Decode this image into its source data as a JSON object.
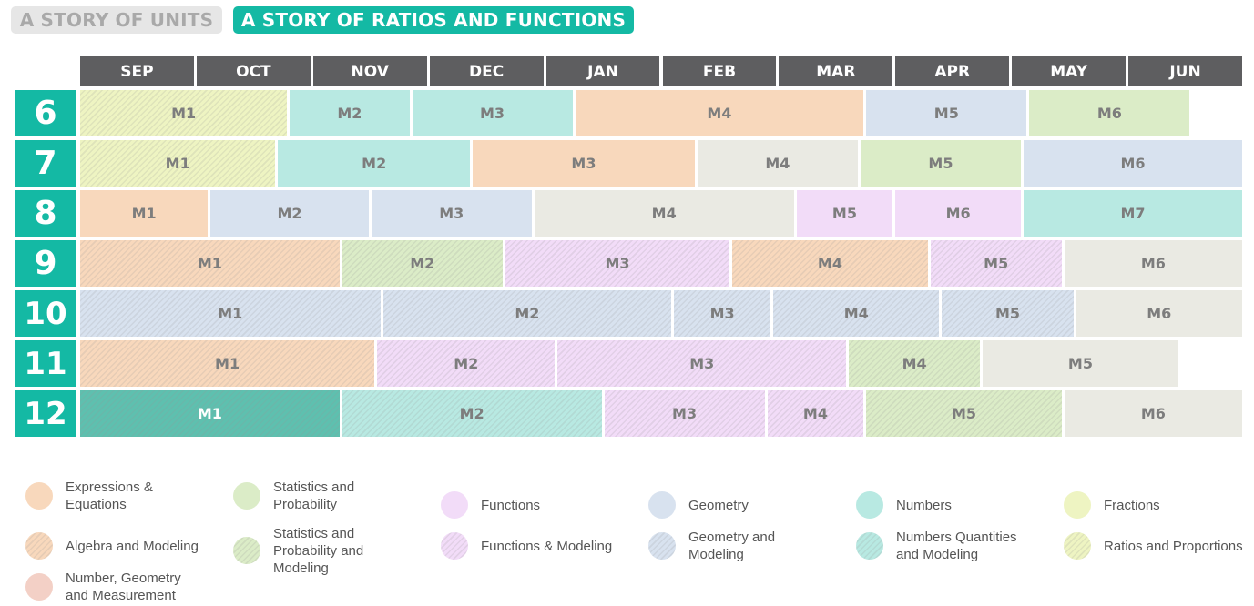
{
  "tabs": {
    "units": "A STORY OF UNITS",
    "ratios": "A STORY OF RATIOS AND FUNCTIONS"
  },
  "months": [
    "SEP",
    "OCT",
    "NOV",
    "DEC",
    "JAN",
    "FEB",
    "MAR",
    "APR",
    "MAY",
    "JUN"
  ],
  "colors": {
    "expressions": "#f8d8bc",
    "algebra": "#f8d8bc",
    "ngm": "#f3d0c6",
    "stats": "#dbecc7",
    "stats_modeling": "#dbecc7",
    "functions": "#f2dcf8",
    "functions_modeling": "#f2dcf8",
    "geometry": "#d8e2ef",
    "geometry_modeling": "#d8e2ef",
    "numbers": "#b8e9e2",
    "nqm": "#b8e9e2",
    "fractions": "#eef4c2",
    "ratios": "#eef4c2",
    "other": "#eaeae3",
    "nqm_dark": "#5ec0af"
  },
  "legend": [
    {
      "label": "Expressions &\nEquations",
      "color": "#f8d8bc",
      "hatch": false
    },
    {
      "label": "Algebra and Modeling",
      "color": "#f8d8bc",
      "hatch": true
    },
    {
      "label": "Number, Geometry\nand Measurement",
      "color": "#f3d0c6",
      "hatch": false
    },
    {
      "label": "Statistics and\nProbability",
      "color": "#dbecc7",
      "hatch": false
    },
    {
      "label": "Statistics and\nProbability and\nModeling",
      "color": "#dbecc7",
      "hatch": true
    },
    {
      "label": "Functions",
      "color": "#f2dcf8",
      "hatch": false
    },
    {
      "label": "Functions & Modeling",
      "color": "#f2dcf8",
      "hatch": true
    },
    {
      "label": "Geometry",
      "color": "#d8e2ef",
      "hatch": false
    },
    {
      "label": "Geometry and\nModeling",
      "color": "#d8e2ef",
      "hatch": true
    },
    {
      "label": "Numbers",
      "color": "#b8e9e2",
      "hatch": false
    },
    {
      "label": "Numbers Quantities\nand Modeling",
      "color": "#b8e9e2",
      "hatch": true
    },
    {
      "label": "Fractions",
      "color": "#eef4c2",
      "hatch": false
    },
    {
      "label": "Ratios and Proportions",
      "color": "#eef4c2",
      "hatch": true
    }
  ],
  "grades": [
    {
      "grade": "6",
      "modules": [
        {
          "label": "M1",
          "start": 0,
          "end": 1.8,
          "color": "#eef4c2",
          "hatch": true
        },
        {
          "label": "M2",
          "start": 1.8,
          "end": 2.85,
          "color": "#b8e9e2",
          "hatch": false
        },
        {
          "label": "M3",
          "start": 2.85,
          "end": 4.25,
          "color": "#b8e9e2",
          "hatch": false
        },
        {
          "label": "M4",
          "start": 4.25,
          "end": 6.75,
          "color": "#f8d8bc",
          "hatch": false
        },
        {
          "label": "M5",
          "start": 6.75,
          "end": 8.15,
          "color": "#d8e2ef",
          "hatch": false
        },
        {
          "label": "M6",
          "start": 8.15,
          "end": 9.55,
          "color": "#dbecc7",
          "hatch": false
        }
      ]
    },
    {
      "grade": "7",
      "modules": [
        {
          "label": "M1",
          "start": 0,
          "end": 1.7,
          "color": "#eef4c2",
          "hatch": true
        },
        {
          "label": "M2",
          "start": 1.7,
          "end": 3.37,
          "color": "#b8e9e2",
          "hatch": false
        },
        {
          "label": "M3",
          "start": 3.37,
          "end": 5.3,
          "color": "#f8d8bc",
          "hatch": false
        },
        {
          "label": "M4",
          "start": 5.3,
          "end": 6.7,
          "color": "#eaeae3",
          "hatch": false
        },
        {
          "label": "M5",
          "start": 6.7,
          "end": 8.1,
          "color": "#dbecc7",
          "hatch": false
        },
        {
          "label": "M6",
          "start": 8.1,
          "end": 10,
          "color": "#d8e2ef",
          "hatch": false
        }
      ]
    },
    {
      "grade": "8",
      "modules": [
        {
          "label": "M1",
          "start": 0,
          "end": 1.12,
          "color": "#f8d8bc",
          "hatch": false
        },
        {
          "label": "M2",
          "start": 1.12,
          "end": 2.5,
          "color": "#d8e2ef",
          "hatch": false
        },
        {
          "label": "M3",
          "start": 2.5,
          "end": 3.9,
          "color": "#d8e2ef",
          "hatch": false
        },
        {
          "label": "M4",
          "start": 3.9,
          "end": 6.15,
          "color": "#eaeae3",
          "hatch": false
        },
        {
          "label": "M5",
          "start": 6.15,
          "end": 7,
          "color": "#f2dcf8",
          "hatch": false
        },
        {
          "label": "M6",
          "start": 7,
          "end": 8.1,
          "color": "#f2dcf8",
          "hatch": false
        },
        {
          "label": "M7",
          "start": 8.1,
          "end": 10,
          "color": "#b8e9e2",
          "hatch": false
        }
      ]
    },
    {
      "grade": "9",
      "modules": [
        {
          "label": "M1",
          "start": 0,
          "end": 2.25,
          "color": "#f8d8bc",
          "hatch": true
        },
        {
          "label": "M2",
          "start": 2.25,
          "end": 3.65,
          "color": "#dbecc7",
          "hatch": true
        },
        {
          "label": "M3",
          "start": 3.65,
          "end": 5.6,
          "color": "#f2dcf8",
          "hatch": true
        },
        {
          "label": "M4",
          "start": 5.6,
          "end": 7.3,
          "color": "#f8d8bc",
          "hatch": true
        },
        {
          "label": "M5",
          "start": 7.3,
          "end": 8.45,
          "color": "#f2dcf8",
          "hatch": true
        },
        {
          "label": "M6",
          "start": 8.45,
          "end": 10,
          "color": "#eaeae3",
          "hatch": false
        }
      ]
    },
    {
      "grade": "10",
      "modules": [
        {
          "label": "M1",
          "start": 0,
          "end": 2.6,
          "color": "#d8e2ef",
          "hatch": true
        },
        {
          "label": "M2",
          "start": 2.6,
          "end": 5.1,
          "color": "#d8e2ef",
          "hatch": true
        },
        {
          "label": "M3",
          "start": 5.1,
          "end": 5.95,
          "color": "#d8e2ef",
          "hatch": true
        },
        {
          "label": "M4",
          "start": 5.95,
          "end": 7.4,
          "color": "#d8e2ef",
          "hatch": true
        },
        {
          "label": "M5",
          "start": 7.4,
          "end": 8.55,
          "color": "#d8e2ef",
          "hatch": true
        },
        {
          "label": "M6",
          "start": 8.55,
          "end": 10,
          "color": "#eaeae3",
          "hatch": false
        }
      ]
    },
    {
      "grade": "11",
      "modules": [
        {
          "label": "M1",
          "start": 0,
          "end": 2.55,
          "color": "#f8d8bc",
          "hatch": true
        },
        {
          "label": "M2",
          "start": 2.55,
          "end": 4.1,
          "color": "#f2dcf8",
          "hatch": true
        },
        {
          "label": "M3",
          "start": 4.1,
          "end": 6.6,
          "color": "#f2dcf8",
          "hatch": true
        },
        {
          "label": "M4",
          "start": 6.6,
          "end": 7.75,
          "color": "#dbecc7",
          "hatch": true
        },
        {
          "label": "M5",
          "start": 7.75,
          "end": 9.45,
          "color": "#eaeae3",
          "hatch": false
        }
      ]
    },
    {
      "grade": "12",
      "modules": [
        {
          "label": "M1",
          "start": 0,
          "end": 2.25,
          "color": "#5ec0af",
          "hatch": true,
          "dark": true
        },
        {
          "label": "M2",
          "start": 2.25,
          "end": 4.5,
          "color": "#b8e9e2",
          "hatch": true
        },
        {
          "label": "M3",
          "start": 4.5,
          "end": 5.9,
          "color": "#f2dcf8",
          "hatch": true
        },
        {
          "label": "M4",
          "start": 5.9,
          "end": 6.75,
          "color": "#f2dcf8",
          "hatch": true
        },
        {
          "label": "M5",
          "start": 6.75,
          "end": 8.45,
          "color": "#dbecc7",
          "hatch": true
        },
        {
          "label": "M6",
          "start": 8.45,
          "end": 10,
          "color": "#eaeae3",
          "hatch": false
        }
      ]
    }
  ]
}
